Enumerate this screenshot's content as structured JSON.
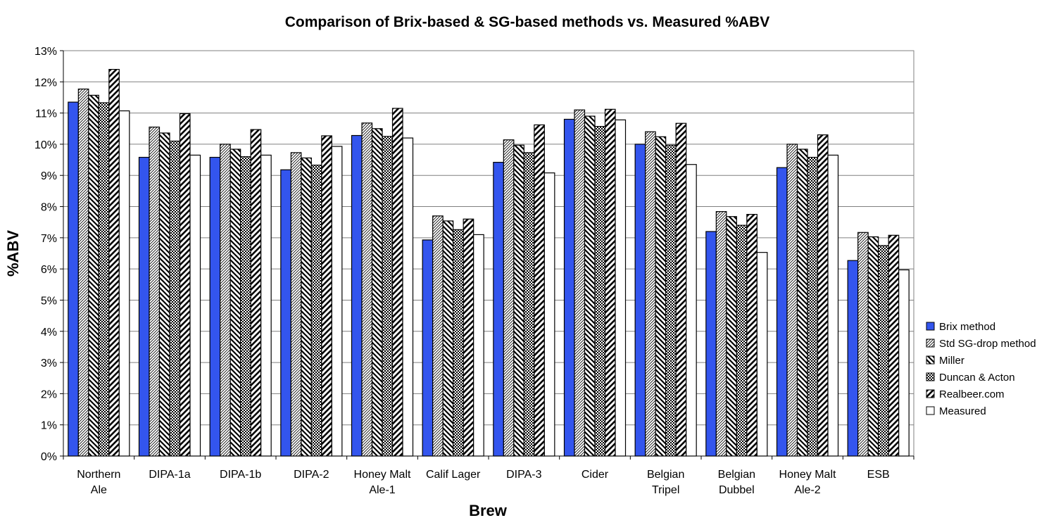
{
  "chart_data": {
    "type": "bar",
    "title": "Comparison of Brix-based & SG-based methods vs. Measured %ABV",
    "xlabel": "Brew",
    "ylabel": "%ABV",
    "ylim": [
      0,
      13
    ],
    "y_tick_step": 1,
    "y_tick_suffix": "%",
    "grid": true,
    "legend_position": "right",
    "categories": [
      [
        "Northern",
        "Ale"
      ],
      [
        "DIPA-1a"
      ],
      [
        "DIPA-1b"
      ],
      [
        "DIPA-2"
      ],
      [
        "Honey Malt",
        "Ale-1"
      ],
      [
        "Calif Lager"
      ],
      [
        "DIPA-3"
      ],
      [
        "Cider"
      ],
      [
        "Belgian",
        "Tripel"
      ],
      [
        "Belgian",
        "Dubbel"
      ],
      [
        "Honey Malt",
        "Ale-2"
      ],
      [
        "ESB"
      ]
    ],
    "series": [
      {
        "name": "Brix method",
        "pattern": "solid-blue",
        "color": "#3355ee",
        "values": [
          11.35,
          9.58,
          9.58,
          9.18,
          10.28,
          6.93,
          9.42,
          10.8,
          10.0,
          7.2,
          9.25,
          6.27
        ]
      },
      {
        "name": "Std SG-drop method",
        "pattern": "fine-diagonal",
        "values": [
          11.77,
          10.55,
          10.0,
          9.73,
          10.68,
          7.7,
          10.14,
          11.1,
          10.4,
          7.84,
          10.0,
          7.17
        ]
      },
      {
        "name": "Miller",
        "pattern": "back-diagonal",
        "values": [
          11.57,
          10.36,
          9.84,
          9.56,
          10.5,
          7.54,
          9.97,
          10.9,
          10.24,
          7.68,
          9.84,
          7.03
        ]
      },
      {
        "name": "Duncan & Acton",
        "pattern": "checker",
        "values": [
          11.33,
          10.1,
          9.6,
          9.33,
          10.25,
          7.26,
          9.73,
          10.57,
          9.97,
          7.4,
          9.58,
          6.75
        ]
      },
      {
        "name": "Realbeer.com",
        "pattern": "wide-diagonal",
        "values": [
          12.4,
          10.98,
          10.47,
          10.27,
          11.15,
          7.6,
          10.62,
          11.12,
          10.67,
          7.75,
          10.3,
          7.08
        ]
      },
      {
        "name": "Measured",
        "pattern": "white",
        "values": [
          11.07,
          9.65,
          9.65,
          9.93,
          10.2,
          7.1,
          9.08,
          10.78,
          9.35,
          6.53,
          9.65,
          5.97
        ]
      }
    ]
  }
}
